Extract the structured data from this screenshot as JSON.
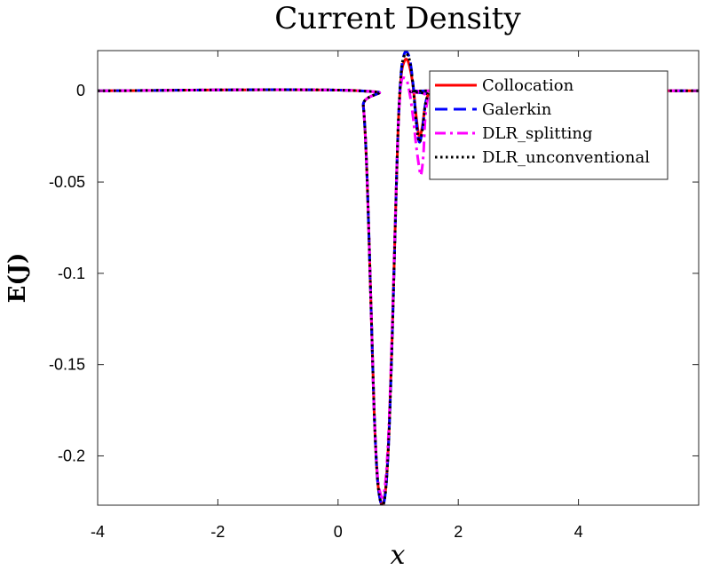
{
  "chart_data": {
    "type": "line",
    "title": "Current Density",
    "xlabel": "x",
    "ylabel": "E(J)",
    "xlim": [
      -4,
      6
    ],
    "ylim": [
      -0.227,
      0.022
    ],
    "xticks": [
      -4,
      -2,
      0,
      2,
      4
    ],
    "xtick_labels": [
      "-4",
      "-2",
      "0",
      "2",
      "4"
    ],
    "yticks": [
      0,
      -0.05,
      -0.1,
      -0.15,
      -0.2
    ],
    "ytick_labels": [
      "0",
      "-0.05",
      "-0.1",
      "-0.15",
      "-0.2"
    ],
    "grid": false,
    "legend_position": "top-right",
    "series": [
      {
        "name": "Collocation",
        "color": "#ff0000",
        "style": "solid",
        "x": [
          -4,
          0.35,
          0.42,
          0.48,
          0.55,
          0.6,
          0.65,
          0.7,
          0.75,
          0.8,
          0.85,
          0.9,
          0.95,
          1.0,
          1.05,
          1.1,
          1.15,
          1.2,
          1.25,
          1.3,
          1.35,
          1.4,
          1.45,
          1.5,
          1.55,
          6
        ],
        "y": [
          0,
          0,
          -0.008,
          -0.045,
          -0.12,
          -0.175,
          -0.21,
          -0.224,
          -0.226,
          -0.215,
          -0.185,
          -0.135,
          -0.075,
          -0.02,
          0.008,
          0.016,
          0.017,
          0.012,
          0.002,
          -0.014,
          -0.025,
          -0.02,
          -0.008,
          -0.002,
          0,
          0
        ]
      },
      {
        "name": "Galerkin",
        "color": "#0000ff",
        "style": "dashed",
        "x": [
          -4,
          0.35,
          0.42,
          0.48,
          0.55,
          0.6,
          0.65,
          0.7,
          0.75,
          0.8,
          0.85,
          0.9,
          0.95,
          1.0,
          1.05,
          1.1,
          1.15,
          1.2,
          1.25,
          1.3,
          1.35,
          1.4,
          1.45,
          1.5,
          1.55,
          6
        ],
        "y": [
          0,
          0,
          -0.008,
          -0.045,
          -0.12,
          -0.175,
          -0.21,
          -0.224,
          -0.227,
          -0.216,
          -0.186,
          -0.136,
          -0.076,
          -0.02,
          0.01,
          0.02,
          0.021,
          0.016,
          0.003,
          -0.016,
          -0.028,
          -0.022,
          -0.008,
          -0.002,
          0,
          0
        ]
      },
      {
        "name": "DLR_splitting",
        "color": "#ff00ff",
        "style": "dashdot",
        "x": [
          -4,
          0.35,
          0.42,
          0.48,
          0.55,
          0.6,
          0.65,
          0.7,
          0.75,
          0.8,
          0.85,
          0.9,
          0.95,
          1.0,
          1.05,
          1.1,
          1.15,
          1.2,
          1.25,
          1.3,
          1.35,
          1.38,
          1.42,
          1.45,
          1.5,
          1.55,
          6
        ],
        "y": [
          0,
          0,
          -0.008,
          -0.045,
          -0.12,
          -0.175,
          -0.208,
          -0.22,
          -0.222,
          -0.21,
          -0.18,
          -0.13,
          -0.072,
          -0.02,
          0.004,
          0.007,
          0.005,
          -0.003,
          -0.015,
          -0.03,
          -0.042,
          -0.046,
          -0.035,
          -0.015,
          -0.003,
          0,
          0
        ]
      },
      {
        "name": "DLR_unconventional",
        "color": "#000000",
        "style": "dotted",
        "x": [
          -4,
          0.35,
          0.42,
          0.48,
          0.55,
          0.6,
          0.65,
          0.7,
          0.75,
          0.8,
          0.85,
          0.9,
          0.95,
          1.0,
          1.05,
          1.1,
          1.15,
          1.2,
          1.25,
          1.3,
          1.35,
          1.4,
          1.45,
          1.5,
          1.55,
          6
        ],
        "y": [
          0,
          0,
          -0.008,
          -0.045,
          -0.12,
          -0.175,
          -0.21,
          -0.224,
          -0.227,
          -0.216,
          -0.186,
          -0.136,
          -0.076,
          -0.02,
          0.01,
          0.019,
          0.02,
          0.015,
          0.002,
          -0.017,
          -0.028,
          -0.022,
          -0.008,
          -0.002,
          0,
          0
        ]
      }
    ]
  }
}
